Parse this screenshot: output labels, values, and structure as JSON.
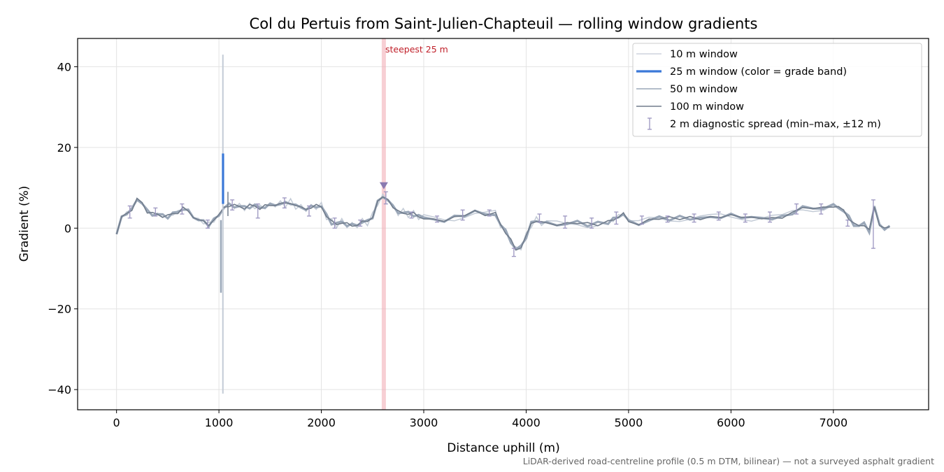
{
  "chart_data": {
    "type": "line",
    "title": "Col du Pertuis from Saint-Julien-Chapteuil — rolling window gradients",
    "xlabel": "Distance uphill (m)",
    "ylabel": "Gradient (%)",
    "xlim": [
      -380,
      7930
    ],
    "ylim": [
      -45,
      47
    ],
    "x_ticks": [
      0,
      1000,
      2000,
      3000,
      4000,
      5000,
      6000,
      7000
    ],
    "x_tick_labels": [
      "0",
      "1000",
      "2000",
      "3000",
      "4000",
      "5000",
      "6000",
      "7000"
    ],
    "y_ticks": [
      -40,
      -20,
      0,
      20,
      40
    ],
    "y_tick_labels": [
      "−40",
      "−20",
      "0",
      "20",
      "40"
    ],
    "grid": true,
    "legend_position": "top-right",
    "colors": {
      "w10": "#c3cbd6",
      "w25": "#3a78d8",
      "w50": "#9aa7b8",
      "w100": "#707c8c",
      "spread": "#9b95c0",
      "highlight": "#f0a8b0",
      "marker": "#8a7ab0"
    },
    "legend": [
      {
        "key": "w10",
        "label": "10 m window"
      },
      {
        "key": "w25",
        "label": "25 m window (color = grade band)"
      },
      {
        "key": "w50",
        "label": "50 m window"
      },
      {
        "key": "w100",
        "label": "100 m window"
      },
      {
        "key": "spread",
        "label": "2 m diagnostic spread (min–max, ±12 m)"
      }
    ],
    "profile": {
      "x": [
        0,
        50,
        100,
        150,
        200,
        250,
        300,
        350,
        400,
        450,
        500,
        550,
        600,
        650,
        700,
        750,
        800,
        850,
        900,
        950,
        1000,
        1050,
        1100,
        1150,
        1200,
        1250,
        1300,
        1350,
        1400,
        1450,
        1500,
        1550,
        1600,
        1650,
        1700,
        1750,
        1800,
        1850,
        1900,
        1950,
        2000,
        2050,
        2100,
        2150,
        2200,
        2250,
        2300,
        2350,
        2400,
        2450,
        2500,
        2550,
        2600,
        2650,
        2700,
        2750,
        2800,
        2850,
        2900,
        2950,
        3000,
        3100,
        3200,
        3300,
        3400,
        3500,
        3600,
        3700,
        3750,
        3800,
        3850,
        3900,
        3950,
        4000,
        4050,
        4100,
        4150,
        4200,
        4300,
        4400,
        4500,
        4600,
        4700,
        4800,
        4850,
        4900,
        4950,
        5000,
        5100,
        5200,
        5300,
        5400,
        5500,
        5600,
        5700,
        5800,
        5900,
        6000,
        6100,
        6200,
        6300,
        6400,
        6500,
        6600,
        6700,
        6800,
        6900,
        7000,
        7050,
        7100,
        7150,
        7200,
        7250,
        7300,
        7350,
        7400,
        7450,
        7500,
        7550
      ],
      "y": [
        -1.5,
        2.5,
        4,
        4.5,
        7,
        6.5,
        4,
        3.5,
        3.5,
        3,
        3,
        3.5,
        4,
        5,
        4,
        3,
        2,
        1.5,
        1,
        2,
        3,
        5.5,
        5.5,
        5.5,
        5.5,
        5,
        5.5,
        5.5,
        5,
        5.5,
        5.5,
        6,
        6,
        6,
        6.5,
        5.5,
        5,
        5,
        5,
        5.5,
        5.5,
        3,
        1.5,
        1,
        1.5,
        1,
        0.5,
        1,
        1.5,
        1.5,
        3,
        6.5,
        7.5,
        7.5,
        5,
        4,
        4,
        3.5,
        3.5,
        3,
        2.5,
        2,
        2,
        2.5,
        3.5,
        4,
        3.5,
        3.5,
        1,
        -1,
        -3,
        -5.5,
        -4.5,
        -2,
        1,
        2,
        1.5,
        1,
        1,
        1,
        1.5,
        1,
        1,
        1.5,
        2,
        3,
        3.5,
        1.5,
        1,
        2,
        2.5,
        2.5,
        2.5,
        2.5,
        2.5,
        2.5,
        3,
        3,
        3,
        2.5,
        2.5,
        2.5,
        2.5,
        4,
        5,
        5,
        5,
        5.5,
        5,
        4.5,
        2.5,
        1,
        0.5,
        1,
        -0.5,
        5,
        1,
        0,
        0
      ]
    },
    "spikes_10m": [
      {
        "x": 1025,
        "min": -41,
        "max": 43
      }
    ],
    "spike_25m": {
      "x": 1040,
      "min": -16,
      "max": 18.5
    },
    "spreads": [
      {
        "x": 130,
        "min": 2.5,
        "max": 5.5
      },
      {
        "x": 380,
        "min": 3,
        "max": 5
      },
      {
        "x": 640,
        "min": 3.5,
        "max": 6
      },
      {
        "x": 890,
        "min": 0,
        "max": 2
      },
      {
        "x": 1130,
        "min": 4.5,
        "max": 7
      },
      {
        "x": 1380,
        "min": 2.5,
        "max": 6
      },
      {
        "x": 1640,
        "min": 5,
        "max": 7.5
      },
      {
        "x": 1880,
        "min": 3,
        "max": 5.5
      },
      {
        "x": 2130,
        "min": 0,
        "max": 2.5
      },
      {
        "x": 2380,
        "min": 0.5,
        "max": 2
      },
      {
        "x": 2630,
        "min": 6,
        "max": 9
      },
      {
        "x": 2880,
        "min": 2.5,
        "max": 4
      },
      {
        "x": 3130,
        "min": 1.5,
        "max": 3
      },
      {
        "x": 3380,
        "min": 2,
        "max": 4.5
      },
      {
        "x": 3640,
        "min": 3,
        "max": 4.5
      },
      {
        "x": 3880,
        "min": -7,
        "max": -5
      },
      {
        "x": 4130,
        "min": 1.5,
        "max": 3.5
      },
      {
        "x": 4380,
        "min": 0,
        "max": 3
      },
      {
        "x": 4640,
        "min": 0,
        "max": 2.5
      },
      {
        "x": 4880,
        "min": 1,
        "max": 4
      },
      {
        "x": 5130,
        "min": 1,
        "max": 3
      },
      {
        "x": 5380,
        "min": 1.5,
        "max": 3
      },
      {
        "x": 5640,
        "min": 1.5,
        "max": 3.5
      },
      {
        "x": 5880,
        "min": 2,
        "max": 4
      },
      {
        "x": 6140,
        "min": 1.5,
        "max": 3.5
      },
      {
        "x": 6380,
        "min": 1.5,
        "max": 4
      },
      {
        "x": 6640,
        "min": 3.5,
        "max": 6
      },
      {
        "x": 6880,
        "min": 3.5,
        "max": 6
      },
      {
        "x": 7140,
        "min": 0.5,
        "max": 2
      },
      {
        "x": 7390,
        "min": -5,
        "max": 7
      }
    ],
    "steepest": {
      "x": 2610,
      "y": 10.5,
      "label": "steepest 25 m"
    },
    "footnote": "LiDAR-derived road-centreline profile (0.5 m DTM, bilinear) — not a surveyed asphalt gradient"
  }
}
